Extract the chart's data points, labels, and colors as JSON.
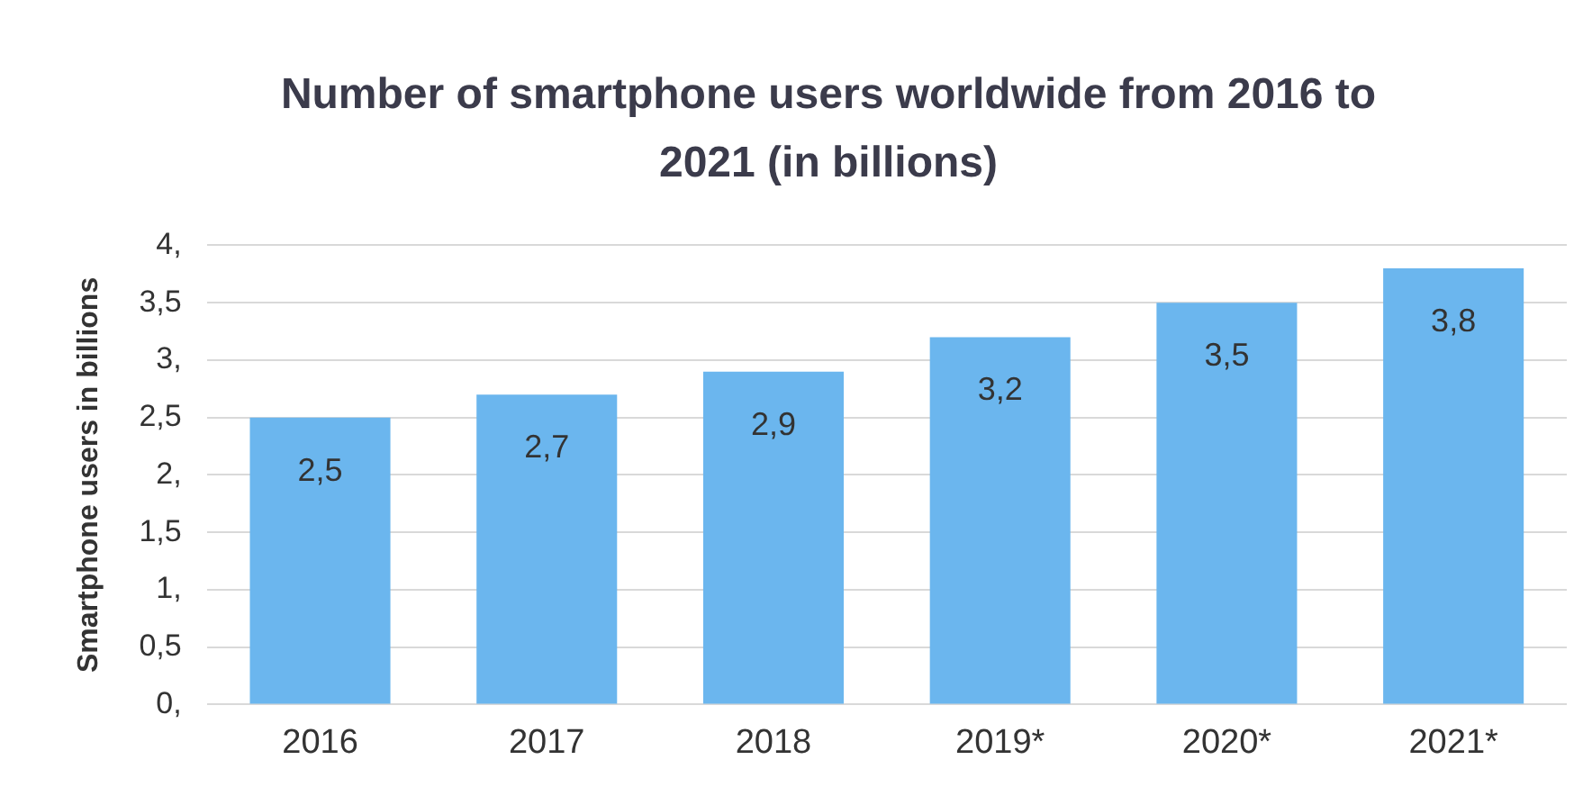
{
  "chart_data": {
    "type": "bar",
    "title": "Number of smartphone users worldwide from 2016 to 2021 (in billions)",
    "ylabel": "Smartphone users in billions",
    "categories": [
      "2016",
      "2017",
      "2018",
      "2019*",
      "2020*",
      "2021*"
    ],
    "values": [
      2.5,
      2.7,
      2.9,
      3.2,
      3.5,
      3.8
    ],
    "value_labels": [
      "2,5",
      "2,7",
      "2,9",
      "3,2",
      "3,5",
      "3,8"
    ],
    "color": "#6bb6ee",
    "ylim": [
      0,
      4
    ],
    "yticks": [
      {
        "value": 0,
        "label": "0,"
      },
      {
        "value": 0.5,
        "label": "0,5"
      },
      {
        "value": 1,
        "label": "1,"
      },
      {
        "value": 1.5,
        "label": "1,5"
      },
      {
        "value": 2,
        "label": "2,"
      },
      {
        "value": 2.5,
        "label": "2,5"
      },
      {
        "value": 3,
        "label": "3,"
      },
      {
        "value": 3.5,
        "label": "3,5"
      },
      {
        "value": 4,
        "label": "4,"
      }
    ],
    "grid": "y",
    "legend": false
  }
}
